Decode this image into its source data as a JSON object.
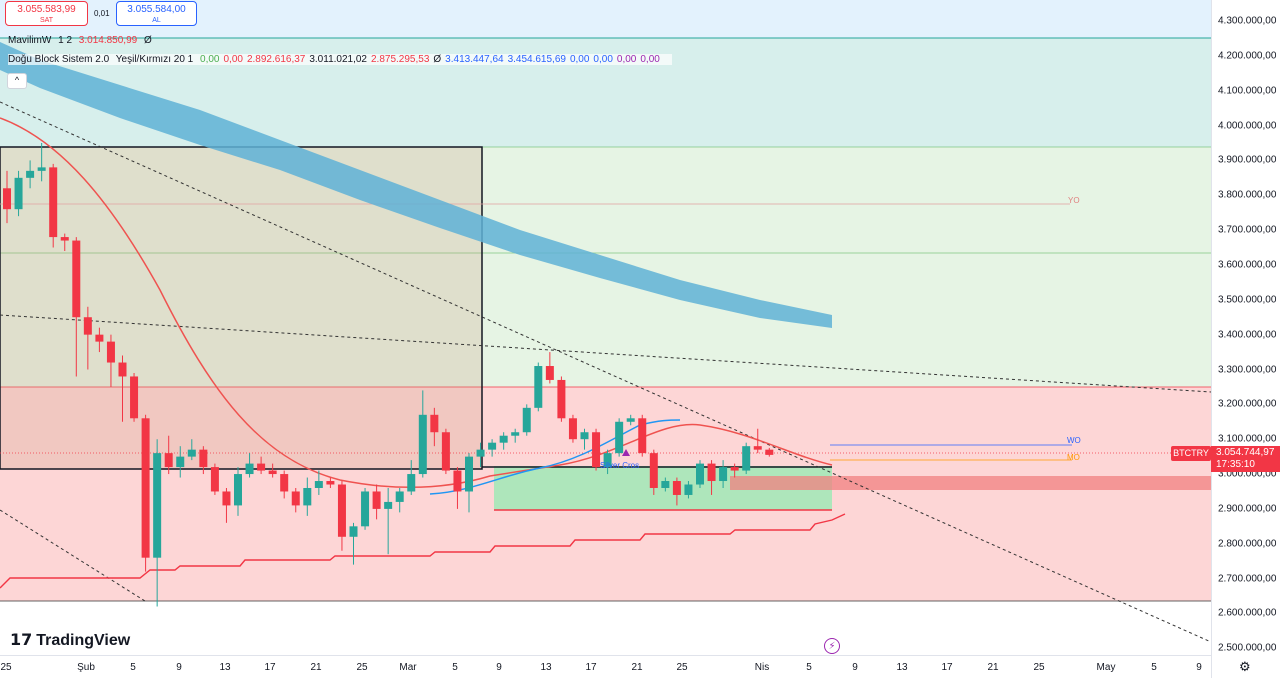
{
  "trade": {
    "sell_price": "3.055.583,99",
    "sell_label": "SAT",
    "spread": "0,01",
    "buy_price": "3.055.584,00",
    "buy_label": "AL"
  },
  "legend": {
    "ind1": {
      "name": "MavilimW",
      "params": "1 2",
      "value": "3.014.850,99",
      "icon": "Ø"
    },
    "ind2": {
      "name": "Doğu Block Sistem 2.0",
      "params": "Yeşil/Kırmızı 20 1",
      "values": [
        "0,00",
        "0,00",
        "2.892.616,37",
        "3.011.021,02",
        "2.875.295,53",
        "Ø",
        "3.413.447,64",
        "3.454.615,69",
        "0,00",
        "0,00",
        "0,00",
        "0,00"
      ],
      "colors": [
        "#4caf50",
        "#f23645",
        "#f23645",
        "#131722",
        "#f23645",
        "#131722",
        "#2962ff",
        "#2962ff",
        "#2962ff",
        "#2962ff",
        "#9c27b0",
        "#9c27b0"
      ]
    },
    "collapse_icon": "^"
  },
  "price_axis": {
    "labels": [
      "4.300.000,00",
      "4.200.000,00",
      "4.100.000,00",
      "4.000.000,00",
      "3.900.000,00",
      "3.800.000,00",
      "3.700.000,00",
      "3.600.000,00",
      "3.500.000,00",
      "3.400.000,00",
      "3.300.000,00",
      "3.200.000,00",
      "3.100.000,00",
      "3.000.000,00",
      "2.900.000,00",
      "2.800.000,00",
      "2.700.000,00",
      "2.600.000,00",
      "2.500.000,00"
    ]
  },
  "time_axis": {
    "labels": [
      "25",
      "Şub",
      "5",
      "9",
      "13",
      "17",
      "21",
      "25",
      "Mar",
      "5",
      "9",
      "13",
      "17",
      "21",
      "25",
      "Nis",
      "5",
      "9",
      "13",
      "17",
      "21",
      "25",
      "May",
      "5",
      "9"
    ]
  },
  "symbol": "BTCTRY",
  "last_price": {
    "value": "3.054.744,97",
    "countdown": "17:35:10"
  },
  "annotations": {
    "silver_cross": "Silver Cros",
    "wo": "WO",
    "yo": "YO",
    "mo": "MO"
  },
  "branding": {
    "logo_text": "TradingView",
    "logo_mark": "17"
  },
  "colors": {
    "up": "#26a69a",
    "down": "#f23645",
    "cloud": "#5fb2d6"
  },
  "chart_data": {
    "type": "candlestick",
    "symbol": "BTCTRY",
    "y_range": [
      2500000,
      4300000
    ],
    "candles": [
      [
        3820000,
        3870000,
        3720000,
        3760000
      ],
      [
        3760000,
        3870000,
        3740000,
        3850000
      ],
      [
        3850000,
        3900000,
        3820000,
        3870000
      ],
      [
        3870000,
        3950000,
        3840000,
        3880000
      ],
      [
        3880000,
        3890000,
        3650000,
        3680000
      ],
      [
        3680000,
        3690000,
        3640000,
        3670000
      ],
      [
        3670000,
        3680000,
        3280000,
        3450000
      ],
      [
        3450000,
        3480000,
        3300000,
        3400000
      ],
      [
        3400000,
        3420000,
        3350000,
        3380000
      ],
      [
        3380000,
        3400000,
        3250000,
        3320000
      ],
      [
        3320000,
        3340000,
        3150000,
        3280000
      ],
      [
        3280000,
        3290000,
        3150000,
        3160000
      ],
      [
        3160000,
        3170000,
        2720000,
        2760000
      ],
      [
        2760000,
        3100000,
        2620000,
        3060000
      ],
      [
        3060000,
        3110000,
        3000000,
        3020000
      ],
      [
        3020000,
        3080000,
        2990000,
        3050000
      ],
      [
        3050000,
        3100000,
        3040000,
        3070000
      ],
      [
        3070000,
        3080000,
        3000000,
        3020000
      ],
      [
        3020000,
        3030000,
        2940000,
        2950000
      ],
      [
        2950000,
        2960000,
        2860000,
        2910000
      ],
      [
        2910000,
        3020000,
        2880000,
        3000000
      ],
      [
        3000000,
        3060000,
        2990000,
        3030000
      ],
      [
        3030000,
        3050000,
        3000000,
        3010000
      ],
      [
        3010000,
        3030000,
        2990000,
        3000000
      ],
      [
        3000000,
        3010000,
        2930000,
        2950000
      ],
      [
        2950000,
        2960000,
        2890000,
        2910000
      ],
      [
        2910000,
        2990000,
        2880000,
        2960000
      ],
      [
        2960000,
        3010000,
        2940000,
        2980000
      ],
      [
        2980000,
        2990000,
        2960000,
        2970000
      ],
      [
        2970000,
        2980000,
        2780000,
        2820000
      ],
      [
        2820000,
        2860000,
        2740000,
        2850000
      ],
      [
        2850000,
        2960000,
        2840000,
        2950000
      ],
      [
        2950000,
        2970000,
        2870000,
        2900000
      ],
      [
        2900000,
        2960000,
        2770000,
        2920000
      ],
      [
        2920000,
        2960000,
        2890000,
        2950000
      ],
      [
        2950000,
        3040000,
        2940000,
        3000000
      ],
      [
        3000000,
        3240000,
        2990000,
        3170000
      ],
      [
        3170000,
        3190000,
        3080000,
        3120000
      ],
      [
        3120000,
        3130000,
        3000000,
        3010000
      ],
      [
        3010000,
        3020000,
        2900000,
        2950000
      ],
      [
        2950000,
        3060000,
        2890000,
        3050000
      ],
      [
        3050000,
        3090000,
        3020000,
        3070000
      ],
      [
        3070000,
        3100000,
        3050000,
        3090000
      ],
      [
        3090000,
        3120000,
        3070000,
        3110000
      ],
      [
        3110000,
        3130000,
        3090000,
        3120000
      ],
      [
        3120000,
        3200000,
        3110000,
        3190000
      ],
      [
        3190000,
        3320000,
        3180000,
        3310000
      ],
      [
        3310000,
        3350000,
        3260000,
        3270000
      ],
      [
        3270000,
        3280000,
        3150000,
        3160000
      ],
      [
        3160000,
        3170000,
        3090000,
        3100000
      ],
      [
        3100000,
        3130000,
        3070000,
        3120000
      ],
      [
        3120000,
        3130000,
        3010000,
        3020000
      ],
      [
        3020000,
        3070000,
        3000000,
        3060000
      ],
      [
        3060000,
        3160000,
        3050000,
        3150000
      ],
      [
        3150000,
        3170000,
        3140000,
        3160000
      ],
      [
        3160000,
        3170000,
        3050000,
        3060000
      ],
      [
        3060000,
        3070000,
        2940000,
        2960000
      ],
      [
        2960000,
        2990000,
        2950000,
        2980000
      ],
      [
        2980000,
        2990000,
        2910000,
        2940000
      ],
      [
        2940000,
        2980000,
        2930000,
        2970000
      ],
      [
        2970000,
        3040000,
        2960000,
        3030000
      ],
      [
        3030000,
        3040000,
        2940000,
        2980000
      ],
      [
        2980000,
        3040000,
        2960000,
        3020000
      ],
      [
        3020000,
        3030000,
        2990000,
        3010000
      ],
      [
        3010000,
        3090000,
        3000000,
        3080000
      ],
      [
        3080000,
        3130000,
        3060000,
        3070000
      ],
      [
        3070000,
        3075000,
        3050000,
        3055000
      ]
    ]
  }
}
